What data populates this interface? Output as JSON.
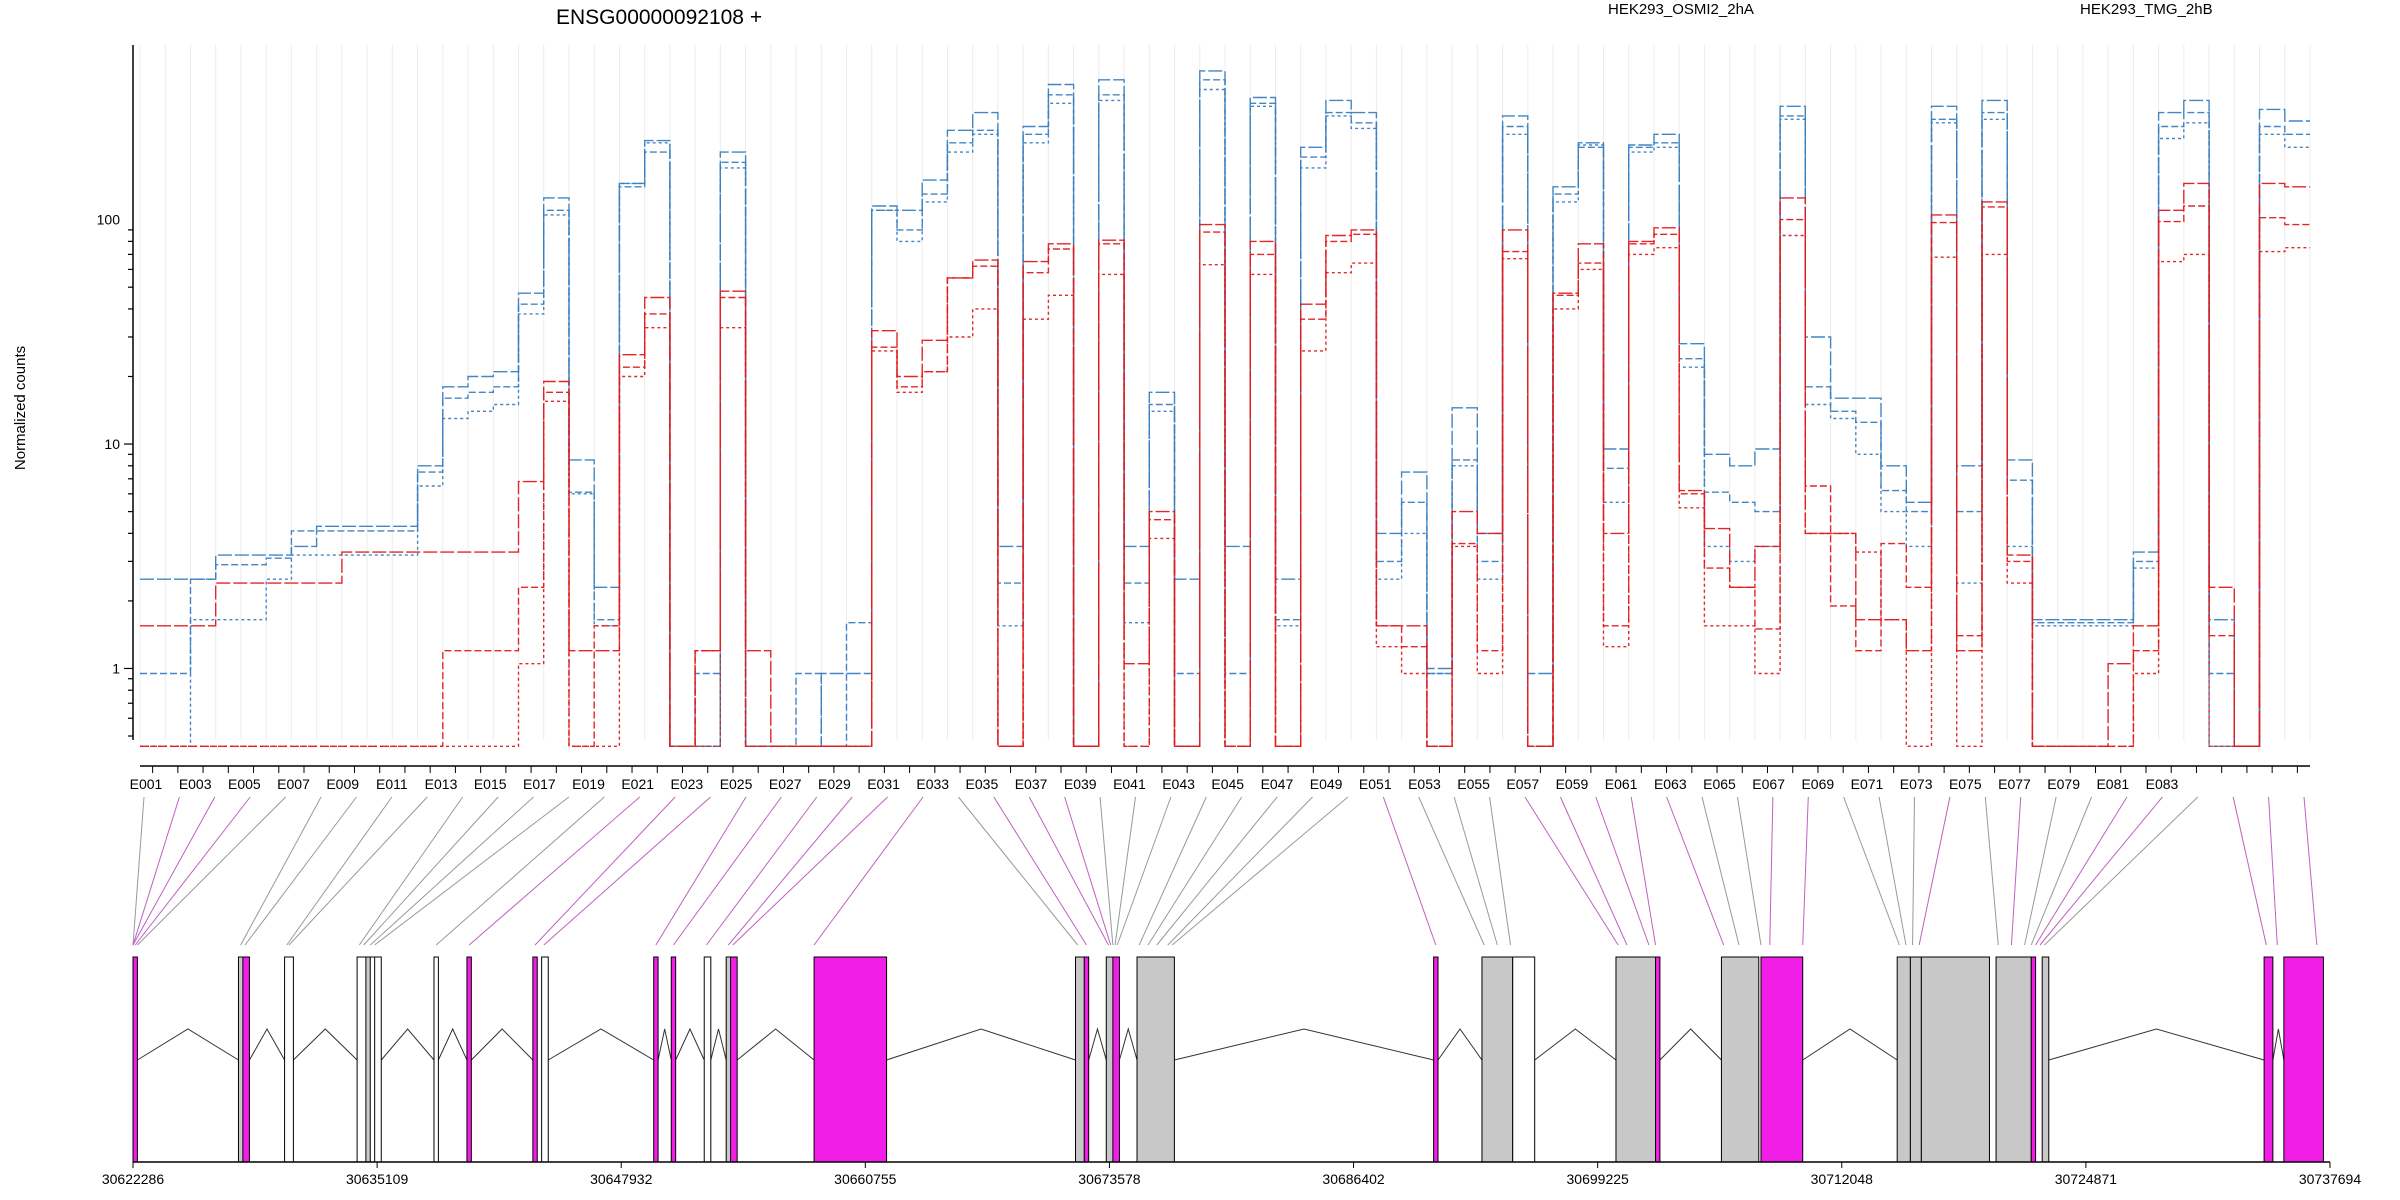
{
  "title": "ENSG00000092108 +",
  "ylabel": "Normalized counts",
  "legend": [
    {
      "name": "HEK293_OSMI2_2hA",
      "color": "#e31a1c"
    },
    {
      "name": "HEK293_TMG_2hB",
      "color": "#3a7fc0"
    }
  ],
  "colors": {
    "osmi": "#e31a1c",
    "tmg": "#3a7fc0",
    "highlight": "#f01ee6",
    "exon": "#c8c8c8"
  },
  "chart_data": {
    "type": "line",
    "yscale": "log",
    "ylim": [
      0.48,
      600
    ],
    "yticks": [
      1,
      10,
      100
    ],
    "ytick_labels": [
      "1",
      "10",
      "100"
    ],
    "exon_labels": [
      "E001",
      "E003",
      "E005",
      "E007",
      "E009",
      "E011",
      "E013",
      "E015",
      "E017",
      "E019",
      "E021",
      "E023",
      "E025",
      "E027",
      "E029",
      "E031",
      "E033",
      "E035",
      "E037",
      "E039",
      "E041",
      "E043",
      "E045",
      "E047",
      "E049",
      "E051",
      "E053",
      "E055",
      "E057",
      "E059",
      "E061",
      "E063",
      "E065",
      "E067",
      "E069",
      "E071",
      "E073",
      "E075",
      "E077",
      "E079",
      "E081",
      "E083"
    ],
    "genomic_labels": [
      "30622286",
      "30635109",
      "30647932",
      "30660755",
      "30673578",
      "30686402",
      "30699225",
      "30712048",
      "30724871",
      "30737694"
    ],
    "genomic_range": [
      30622286,
      30737694
    ],
    "series": [
      {
        "name": "HEK293_TMG_2hB",
        "group": "tmg",
        "values": [
          2.5,
          2.5,
          2.5,
          3.2,
          3.2,
          3.2,
          3.5,
          4.3,
          4.3,
          4.3,
          4.3,
          8,
          18,
          20,
          21,
          47,
          125,
          8.5,
          2.3,
          145,
          225,
          0.45,
          0.45,
          200,
          0.45,
          0.45,
          0.45,
          0.95,
          0.95,
          115,
          110,
          150,
          250,
          300,
          3.5,
          260,
          400,
          0.45,
          420,
          3.5,
          17,
          2.5,
          460,
          3.5,
          350,
          2.5,
          210,
          340,
          300,
          4,
          7.5,
          1,
          14.5,
          4,
          290,
          0.95,
          140,
          220,
          9.5,
          215,
          240,
          28,
          9,
          8,
          9.5,
          320,
          30,
          16,
          16,
          8,
          5.5,
          320,
          8,
          340,
          8.5,
          1.65,
          1.65,
          1.65,
          1.65,
          3.3,
          300,
          340,
          1.65,
          0.45,
          310,
          275
        ]
      },
      {
        "name": "HEK293_TMG_2hB",
        "group": "tmg",
        "values": [
          0.95,
          0.95,
          2.5,
          2.9,
          2.9,
          3.1,
          4.1,
          4.1,
          4.1,
          4.1,
          4.1,
          7.5,
          16,
          17,
          18,
          42,
          110,
          6.1,
          1.65,
          140,
          200,
          0.45,
          0.95,
          180,
          0.45,
          0.45,
          0.95,
          0.45,
          1.6,
          110,
          90,
          130,
          220,
          250,
          2.4,
          240,
          360,
          0.45,
          360,
          2.4,
          15,
          0.95,
          420,
          0.95,
          330,
          1.65,
          190,
          300,
          270,
          3,
          5.5,
          0.95,
          8.5,
          3,
          260,
          0.45,
          130,
          210,
          7.8,
          210,
          220,
          24,
          6.1,
          5.5,
          5,
          290,
          18,
          14,
          12.5,
          6.2,
          5,
          280,
          5,
          300,
          6.9,
          1.6,
          1.6,
          1.6,
          1.6,
          3,
          260,
          300,
          0.95,
          0.45,
          260,
          240
        ]
      },
      {
        "name": "HEK293_TMG_2hB",
        "group": "tmg",
        "values": [
          0.45,
          0.45,
          1.65,
          1.65,
          1.65,
          2.5,
          3.2,
          3.2,
          3.2,
          3.2,
          3.2,
          6.5,
          13,
          14,
          15,
          38,
          105,
          6,
          1.55,
          145,
          220,
          0.45,
          0.45,
          170,
          0.45,
          0.45,
          0.45,
          0.45,
          0.45,
          110,
          80,
          120,
          200,
          240,
          1.55,
          220,
          330,
          0.45,
          340,
          1.6,
          14,
          0.45,
          380,
          0.45,
          320,
          1.55,
          170,
          290,
          255,
          2.5,
          4,
          0.95,
          8,
          2.5,
          240,
          0.45,
          120,
          215,
          5.5,
          200,
          210,
          22,
          3.5,
          3,
          3.5,
          280,
          15,
          13,
          9,
          5,
          3.5,
          270,
          2.4,
          280,
          3.5,
          1.55,
          1.55,
          1.55,
          1.55,
          2.8,
          230,
          270,
          0.45,
          0.45,
          240,
          210
        ]
      },
      {
        "name": "HEK293_OSMI2_2hA",
        "group": "osmi",
        "values": [
          1.55,
          1.55,
          1.55,
          2.4,
          2.4,
          2.4,
          2.4,
          2.4,
          3.3,
          3.3,
          3.3,
          3.3,
          3.3,
          3.3,
          3.3,
          6.8,
          19,
          1.2,
          1.2,
          25,
          45,
          0.45,
          1.2,
          48,
          1.2,
          0.45,
          0.45,
          0.45,
          0.45,
          32,
          20,
          29,
          55,
          66,
          0.45,
          65,
          78,
          0.45,
          81,
          1.05,
          5,
          0.45,
          95,
          0.45,
          80,
          0.45,
          42,
          85,
          90,
          1.55,
          1.55,
          0.45,
          5,
          4,
          90,
          0.45,
          47,
          78,
          4,
          80,
          92,
          6.2,
          4.2,
          2.3,
          3.5,
          125,
          4,
          4,
          1.65,
          1.65,
          1.2,
          105,
          1.2,
          120,
          3.2,
          0.45,
          0.45,
          0.45,
          1.05,
          1.55,
          110,
          145,
          2.3,
          0.45,
          145,
          140
        ]
      },
      {
        "name": "HEK293_OSMI2_2hA",
        "group": "osmi",
        "values": [
          0.45,
          0.45,
          0.45,
          0.45,
          0.45,
          0.45,
          0.45,
          0.45,
          0.45,
          0.45,
          0.45,
          0.45,
          1.2,
          1.2,
          1.2,
          2.3,
          17,
          0.45,
          1.55,
          22,
          38,
          0.45,
          1.2,
          45,
          0.45,
          0.45,
          0.45,
          0.45,
          0.45,
          27,
          18,
          21,
          55,
          62,
          0.45,
          58,
          74,
          0.45,
          78,
          0.45,
          4.6,
          0.45,
          88,
          0.45,
          70,
          0.45,
          36,
          80,
          86,
          1.55,
          1.25,
          0.45,
          3.6,
          1.2,
          72,
          0.45,
          46,
          64,
          1.55,
          78,
          86,
          6,
          2.8,
          2.3,
          1.5,
          100,
          6.5,
          1.9,
          1.2,
          3.6,
          2.3,
          97,
          1.4,
          114,
          3,
          0.45,
          0.45,
          0.45,
          0.45,
          1.2,
          98,
          115,
          1.4,
          0.45,
          102,
          95
        ]
      },
      {
        "name": "HEK293_OSMI2_2hA",
        "group": "osmi",
        "values": [
          0.45,
          0.45,
          0.45,
          0.45,
          0.45,
          0.45,
          0.45,
          0.45,
          0.45,
          0.45,
          0.45,
          0.45,
          0.45,
          0.45,
          0.45,
          1.05,
          15.5,
          0.45,
          0.45,
          20,
          33,
          0.45,
          0.45,
          33,
          0.45,
          0.45,
          0.45,
          0.45,
          0.45,
          26,
          17,
          21,
          30,
          40,
          0.45,
          36,
          46,
          0.45,
          57,
          0.45,
          3.8,
          0.45,
          63,
          0.45,
          57,
          0.45,
          26,
          58,
          64,
          1.25,
          0.95,
          0.45,
          3.5,
          0.95,
          67,
          0.45,
          40,
          60,
          1.25,
          70,
          75,
          5.2,
          1.55,
          1.55,
          0.95,
          85,
          4,
          4,
          3.3,
          1.65,
          0.45,
          68,
          0.45,
          70,
          2.4,
          0.45,
          0.45,
          0.45,
          0.45,
          0.95,
          65,
          70,
          0.45,
          0.45,
          72,
          75
        ]
      }
    ]
  }
}
